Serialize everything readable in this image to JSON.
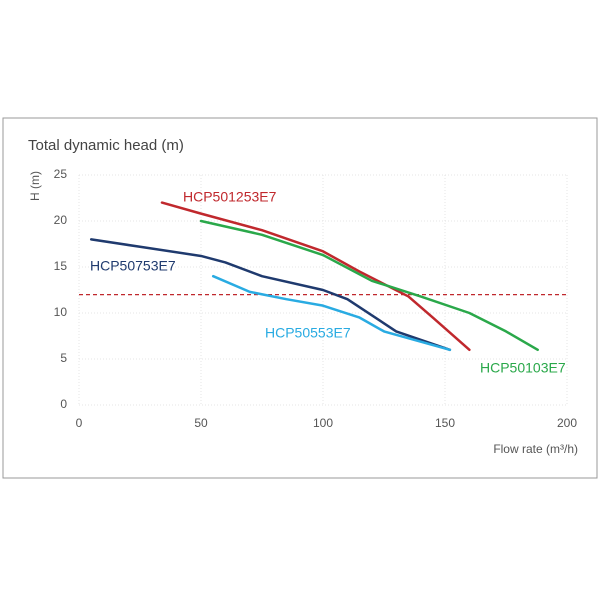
{
  "chart_data": {
    "type": "line",
    "title": "Total dynamic head (m)",
    "y_label": "H (m)",
    "x_label": "Flow rate (m³/h)",
    "xlim": [
      0,
      200
    ],
    "xticks": [
      0,
      50,
      100,
      150,
      200
    ],
    "ylim": [
      0,
      25
    ],
    "yticks": [
      0,
      5,
      10,
      15,
      20,
      25
    ],
    "grid": true,
    "reference_line": {
      "value": 12,
      "color": "#c0282d"
    },
    "series": [
      {
        "name": "HCP501253E7",
        "color": "#c0282d",
        "x": [
          34,
          50,
          75,
          100,
          115,
          135,
          145,
          160
        ],
        "values": [
          22,
          20.8,
          19,
          16.7,
          14.5,
          11.8,
          9.5,
          6
        ]
      },
      {
        "name": "HCP50753E7",
        "color": "#1f3a6e",
        "x": [
          5,
          25,
          50,
          60,
          75,
          100,
          110,
          130,
          152
        ],
        "values": [
          18,
          17.2,
          16.2,
          15.5,
          14,
          12.5,
          11.5,
          8,
          6
        ]
      },
      {
        "name": "HCP50553E7",
        "color": "#29abe2",
        "x": [
          55,
          70,
          85,
          100,
          115,
          125,
          152
        ],
        "values": [
          14,
          12.3,
          11.5,
          10.8,
          9.5,
          8,
          6
        ]
      },
      {
        "name": "HCP50103E7",
        "color": "#2aa84a",
        "x": [
          50,
          75,
          100,
          120,
          140,
          160,
          175,
          188
        ],
        "values": [
          20,
          18.5,
          16.3,
          13.5,
          11.8,
          10,
          8,
          6
        ]
      }
    ]
  }
}
